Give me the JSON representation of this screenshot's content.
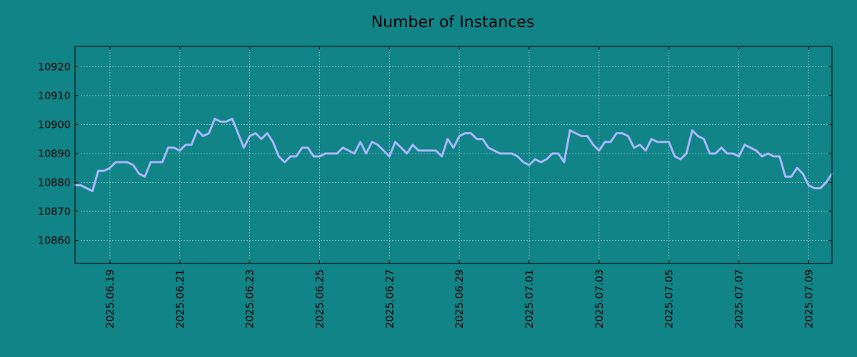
{
  "chart_data": {
    "type": "line",
    "title": "Number of Instances",
    "xlabel": "",
    "ylabel": "",
    "x_start": "2025-06-18",
    "x_ticks": [
      "2025.06.19",
      "2025.06.21",
      "2025.06.23",
      "2025.06.25",
      "2025.06.27",
      "2025.06.29",
      "2025.07.01",
      "2025.07.03",
      "2025.07.05",
      "2025.07.07",
      "2025.07.09"
    ],
    "y_ticks": [
      10860,
      10870,
      10880,
      10890,
      10900,
      10910,
      10920
    ],
    "ylim": [
      10852,
      10927
    ],
    "grid": true,
    "colors": {
      "background": "#108487",
      "line": "#a9b7ff"
    },
    "series": [
      {
        "values": [
          10879,
          10879,
          10878,
          10877,
          10884,
          10884,
          10885,
          10887,
          10887,
          10887,
          10886,
          10883,
          10882,
          10887,
          10887,
          10887,
          10892,
          10892,
          10891,
          10893,
          10893,
          10898,
          10896,
          10897,
          10902,
          10901,
          10901,
          10902,
          10897,
          10892,
          10896,
          10897,
          10895,
          10897,
          10894,
          10889,
          10887,
          10889,
          10889,
          10892,
          10892,
          10889,
          10889,
          10890,
          10890,
          10890,
          10892,
          10891,
          10890,
          10894,
          10890,
          10894,
          10893,
          10891,
          10889,
          10894,
          10892,
          10890,
          10893,
          10891,
          10891,
          10891,
          10891,
          10889,
          10895,
          10892,
          10896,
          10897,
          10897,
          10895,
          10895,
          10892,
          10891,
          10890,
          10890,
          10890,
          10889,
          10887,
          10886,
          10888,
          10887,
          10888,
          10890,
          10890,
          10887,
          10898,
          10897,
          10896,
          10896,
          10893,
          10891,
          10894,
          10894,
          10897,
          10897,
          10896,
          10892,
          10893,
          10891,
          10895,
          10894,
          10894,
          10894,
          10889,
          10888,
          10890,
          10898,
          10896,
          10895,
          10890,
          10890,
          10892,
          10890,
          10890,
          10889,
          10893,
          10892,
          10891,
          10889,
          10890,
          10889,
          10889,
          10882,
          10882,
          10885,
          10883,
          10879,
          10878,
          10878,
          10880,
          10883
        ]
      }
    ]
  }
}
